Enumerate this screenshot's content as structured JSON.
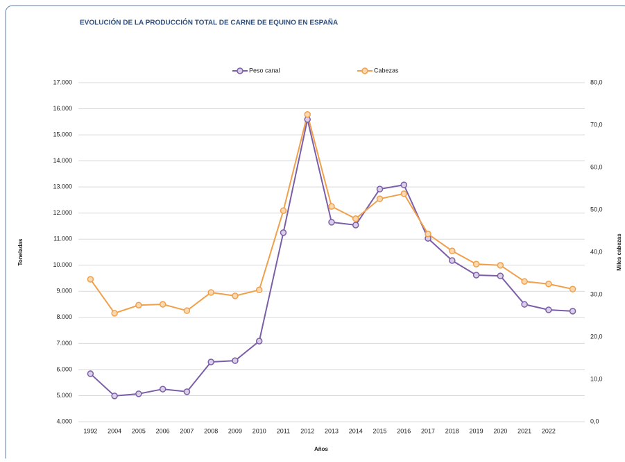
{
  "chart_data": {
    "type": "line",
    "title": "EVOLUCIÓN DE LA PRODUCCIÓN TOTAL DE CARNE DE EQUINO EN ESPAÑA",
    "x_label": "Años",
    "y_label": "Toneladas",
    "y2_label": "Miles cabezas",
    "categories": [
      "1992",
      "2004",
      "2005",
      "2006",
      "2007",
      "2008",
      "2009",
      "2010",
      "2011",
      "2012",
      "2013",
      "2014",
      "2015",
      "2016",
      "2017",
      "2018",
      "2019",
      "2020",
      "2021",
      "2022",
      null
    ],
    "series": [
      {
        "name": "Peso canal",
        "color": "#7b5ea7",
        "marker_fill": "#d9d0e8",
        "values": [
          5840,
          4990,
          5070,
          5250,
          5150,
          6290,
          6340,
          7090,
          11250,
          15590,
          11650,
          11540,
          12920,
          13080,
          11030,
          10180,
          9620,
          9590,
          8500,
          8290,
          8240
        ]
      },
      {
        "name": "Cabezas",
        "color": "#f0a04b",
        "marker_fill": "#fbd9b0",
        "axis": "y2",
        "values": [
          33.6,
          25.6,
          27.5,
          27.7,
          26.2,
          30.5,
          29.7,
          31.1,
          49.8,
          72.5,
          50.8,
          47.9,
          52.6,
          53.8,
          44.3,
          40.3,
          37.2,
          36.9,
          33.1,
          32.5,
          31.3
        ]
      }
    ],
    "ylim": [
      4000,
      17000
    ],
    "yticks": [
      {
        "value": 4000,
        "label": "4.000"
      },
      {
        "value": 5000,
        "label": "5.000"
      },
      {
        "value": 6000,
        "label": "6.000"
      },
      {
        "value": 7000,
        "label": "7.000"
      },
      {
        "value": 8000,
        "label": "8.000"
      },
      {
        "value": 9000,
        "label": "9.000"
      },
      {
        "value": 10000,
        "label": "10.000"
      },
      {
        "value": 11000,
        "label": "11.000"
      },
      {
        "value": 12000,
        "label": "12.000"
      },
      {
        "value": 13000,
        "label": "13.000"
      },
      {
        "value": 14000,
        "label": "14.000"
      },
      {
        "value": 15000,
        "label": "15.000"
      },
      {
        "value": 16000,
        "label": "16.000"
      },
      {
        "value": 17000,
        "label": "17.000"
      }
    ],
    "y2lim": [
      0,
      80
    ],
    "y2ticks": [
      {
        "value": 0,
        "label": "0,0"
      },
      {
        "value": 10,
        "label": "10,0"
      },
      {
        "value": 20,
        "label": "20,0"
      },
      {
        "value": 30,
        "label": "30,0"
      },
      {
        "value": 40,
        "label": "40,0"
      },
      {
        "value": 50,
        "label": "50,0"
      },
      {
        "value": 60,
        "label": "60,0"
      },
      {
        "value": 70,
        "label": "70,0"
      },
      {
        "value": 80,
        "label": "80,0"
      }
    ],
    "grid": true,
    "legend": "top"
  }
}
